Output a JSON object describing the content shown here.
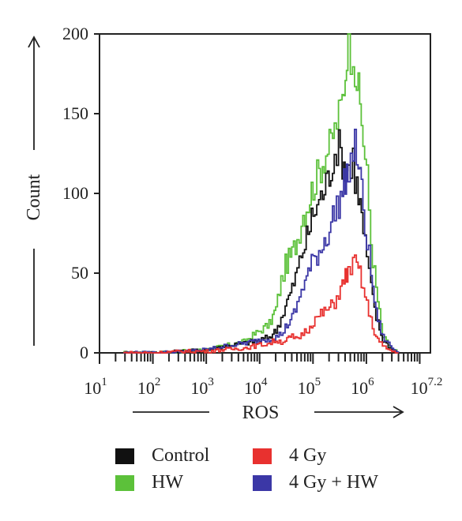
{
  "chart_data": {
    "type": "area",
    "xlabel": "ROS",
    "ylabel": "Count",
    "x_scale": "log",
    "xlim": [
      10,
      15848932
    ],
    "ylim": [
      0,
      200
    ],
    "yticks": [
      0,
      50,
      100,
      150,
      200
    ],
    "xtick_labels": [
      {
        "base": "10",
        "exp": "1"
      },
      {
        "base": "10",
        "exp": "2"
      },
      {
        "base": "10",
        "exp": "3"
      },
      {
        "base": "10",
        "exp": "4"
      },
      {
        "base": "10",
        "exp": "5"
      },
      {
        "base": "10",
        "exp": "6"
      },
      {
        "base": "10",
        "exp": "7.2"
      }
    ],
    "legend_position": "bottom",
    "series": [
      {
        "name": "HW",
        "color": "#5cc13a",
        "x": [
          28,
          100,
          400,
          1000,
          2000,
          5000,
          10000,
          15000,
          20000,
          25000,
          30000,
          40000,
          50000,
          60000,
          80000,
          100000,
          150000,
          200000,
          250000,
          300000,
          350000,
          400000,
          450000,
          500000,
          550000,
          600000,
          700000,
          800000,
          1000000,
          1200000,
          1500000,
          2000000,
          3000000,
          4000000
        ],
        "y": [
          0,
          0,
          1,
          2,
          4,
          7,
          14,
          18,
          28,
          45,
          55,
          62,
          72,
          85,
          95,
          105,
          120,
          130,
          140,
          150,
          160,
          175,
          200,
          185,
          190,
          175,
          165,
          145,
          110,
          70,
          40,
          10,
          2,
          0
        ]
      },
      {
        "name": "Control",
        "color": "#111111",
        "x": [
          28,
          100,
          400,
          1000,
          2000,
          5000,
          10000,
          15000,
          20000,
          25000,
          30000,
          40000,
          50000,
          60000,
          80000,
          100000,
          150000,
          200000,
          250000,
          300000,
          350000,
          400000,
          450000,
          500000,
          550000,
          600000,
          700000,
          800000,
          1000000,
          1200000,
          1500000,
          2000000,
          3000000,
          4000000
        ],
        "y": [
          0,
          0,
          1,
          2,
          4,
          6,
          8,
          10,
          14,
          22,
          30,
          40,
          52,
          62,
          75,
          88,
          100,
          112,
          125,
          130,
          120,
          115,
          118,
          112,
          125,
          110,
          100,
          85,
          60,
          40,
          22,
          8,
          2,
          0
        ]
      },
      {
        "name": "4 Gy + HW",
        "color": "#3b37a6",
        "x": [
          28,
          100,
          400,
          1000,
          2000,
          5000,
          10000,
          15000,
          20000,
          25000,
          30000,
          40000,
          50000,
          60000,
          80000,
          100000,
          150000,
          200000,
          250000,
          300000,
          350000,
          400000,
          450000,
          500000,
          550000,
          600000,
          700000,
          800000,
          1000000,
          1200000,
          1500000,
          2000000,
          3000000,
          4000000
        ],
        "y": [
          0,
          0,
          1,
          2,
          4,
          6,
          8,
          9,
          10,
          12,
          16,
          22,
          30,
          40,
          50,
          58,
          68,
          78,
          88,
          95,
          100,
          110,
          115,
          120,
          125,
          130,
          118,
          100,
          70,
          50,
          25,
          10,
          3,
          0
        ]
      },
      {
        "name": "4 Gy",
        "color": "#e8312f",
        "x": [
          28,
          100,
          400,
          1000,
          2000,
          5000,
          10000,
          15000,
          20000,
          25000,
          30000,
          40000,
          50000,
          60000,
          80000,
          100000,
          150000,
          200000,
          250000,
          300000,
          350000,
          400000,
          450000,
          500000,
          550000,
          600000,
          700000,
          800000,
          1000000,
          1200000,
          1500000,
          2000000,
          3000000,
          4000000
        ],
        "y": [
          0,
          0,
          1,
          1,
          2,
          3,
          5,
          6,
          8,
          7,
          8,
          10,
          8,
          12,
          15,
          20,
          25,
          28,
          32,
          38,
          42,
          48,
          50,
          55,
          54,
          56,
          52,
          45,
          30,
          20,
          10,
          4,
          1,
          0
        ]
      }
    ],
    "legend": [
      {
        "label": "Control",
        "color": "#111111"
      },
      {
        "label": "4 Gy",
        "color": "#e8312f"
      },
      {
        "label": "HW",
        "color": "#5cc13a"
      },
      {
        "label": "4 Gy + HW",
        "color": "#3b37a6"
      }
    ]
  }
}
